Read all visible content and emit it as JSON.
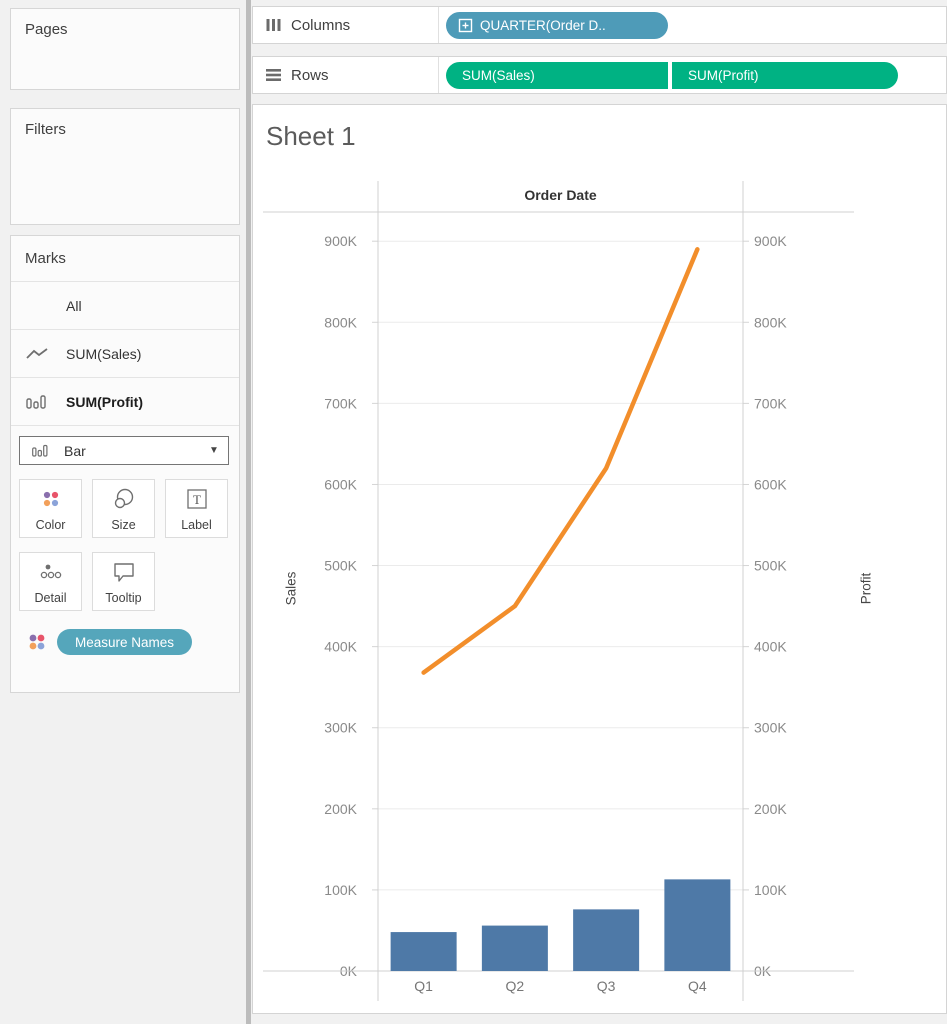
{
  "colors": {
    "dimension_pill": "#4e9bb8",
    "measure_pill": "#00b283",
    "measure_names_pill": "#55a6bb",
    "bar_mark": "#4e79a7",
    "line_mark": "#f28e2b",
    "color_button_dots": [
      "#8a6fad",
      "#e8546a",
      "#f2a05b",
      "#8ba3d9"
    ]
  },
  "shelves": {
    "columns": {
      "label": "Columns",
      "pill": "QUARTER(Order D.."
    },
    "rows": {
      "label": "Rows",
      "pills": [
        "SUM(Sales)",
        "SUM(Profit)"
      ]
    }
  },
  "panels": {
    "pages": {
      "title": "Pages"
    },
    "filters": {
      "title": "Filters"
    },
    "marks": {
      "title": "Marks",
      "cards": [
        {
          "label": "All",
          "icon": "none"
        },
        {
          "label": "SUM(Sales)",
          "icon": "line-chart-icon"
        },
        {
          "label": "SUM(Profit)",
          "icon": "bar-chart-icon"
        }
      ],
      "mark_type": {
        "value": "Bar"
      },
      "buttons": [
        {
          "label": "Color"
        },
        {
          "label": "Size"
        },
        {
          "label": "Label"
        },
        {
          "label": "Detail"
        },
        {
          "label": "Tooltip"
        }
      ],
      "measure_names": "Measure Names"
    }
  },
  "sheet": {
    "title": "Sheet 1"
  },
  "chart_data": {
    "type": "dual-axis line + bar",
    "column_header": "Order Date",
    "categories": [
      "Q1",
      "Q2",
      "Q3",
      "Q4"
    ],
    "series": [
      {
        "name": "SUM(Sales)",
        "type": "line",
        "axis": "left",
        "color": "#f28e2b",
        "values_k": [
          368,
          450,
          620,
          890
        ]
      },
      {
        "name": "SUM(Profit)",
        "type": "bar",
        "axis": "right",
        "color": "#4e79a7",
        "values_k": [
          48,
          56,
          76,
          113
        ]
      }
    ],
    "left_axis": {
      "title": "Sales",
      "tick_values_k": [
        0,
        100,
        200,
        300,
        400,
        500,
        600,
        700,
        800,
        900
      ],
      "tick_labels": [
        "0K",
        "100K",
        "200K",
        "300K",
        "400K",
        "500K",
        "600K",
        "700K",
        "800K",
        "900K"
      ]
    },
    "right_axis": {
      "title": "Profit",
      "tick_values_k": [
        0,
        100,
        200,
        300,
        400,
        500,
        600,
        700,
        800,
        900
      ],
      "tick_labels": [
        "0K",
        "100K",
        "200K",
        "300K",
        "400K",
        "500K",
        "600K",
        "700K",
        "800K",
        "900K"
      ]
    },
    "ylim_k": [
      0,
      936
    ],
    "grid": true,
    "legend": "none"
  }
}
